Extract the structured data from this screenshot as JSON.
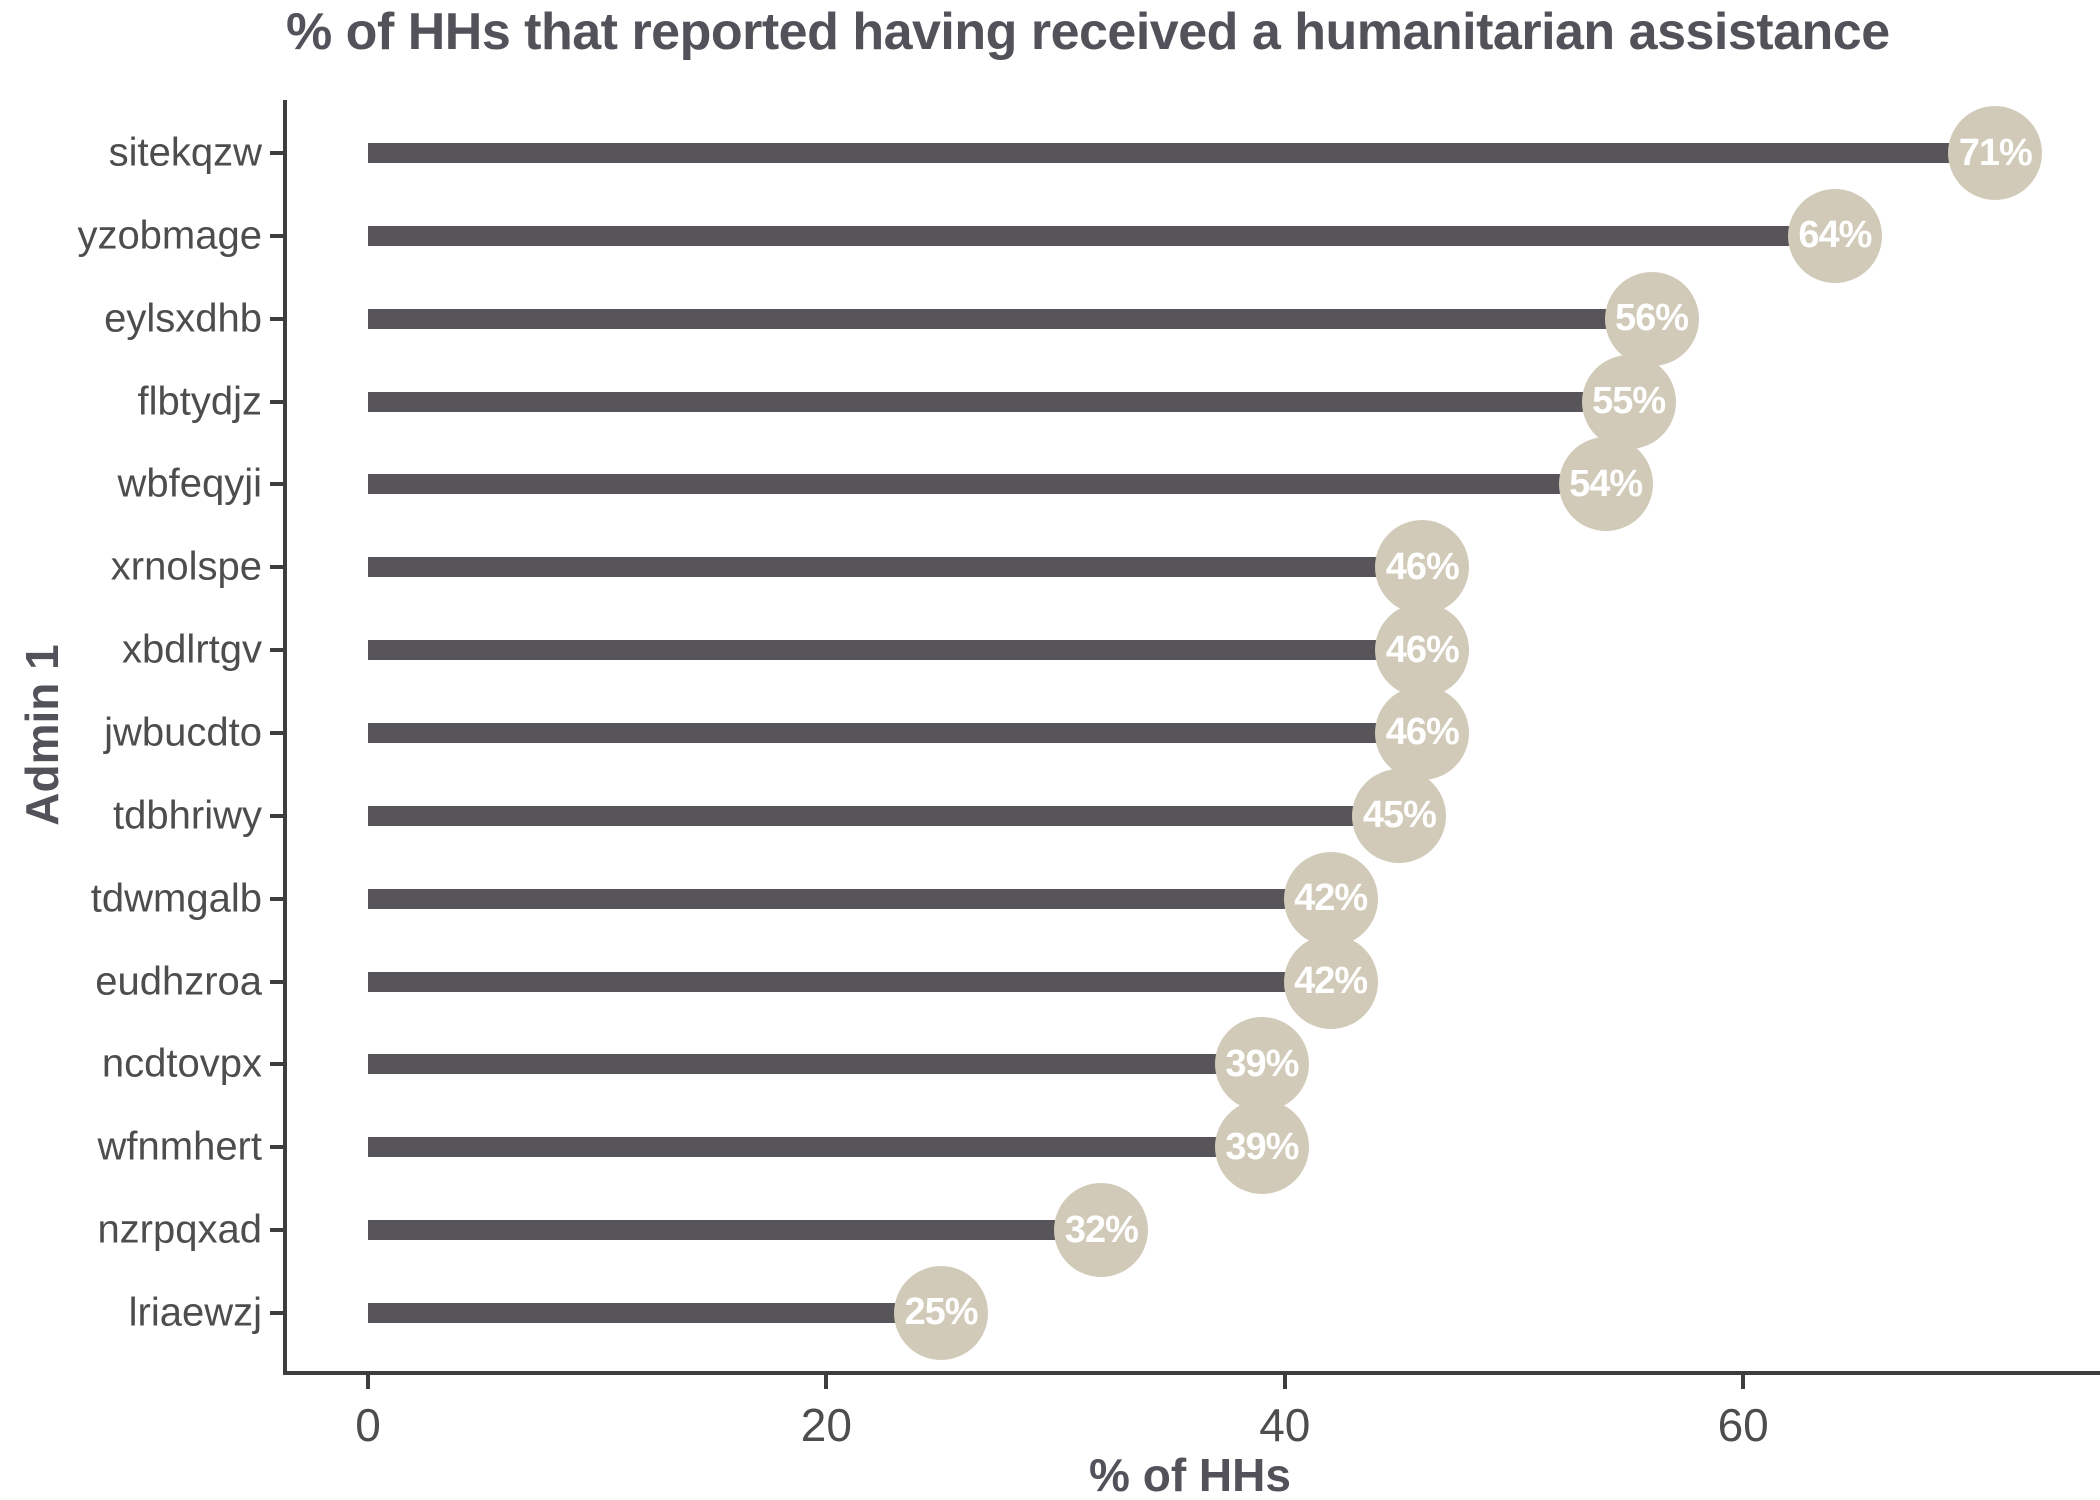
{
  "title": "% of HHs that reported having received a humanitarian assistance",
  "chart_data": {
    "type": "bar",
    "variant": "horizontal-lollipop",
    "title": "% of HHs that reported having received a humanitarian assistance",
    "xlabel": "% of HHs",
    "ylabel": "Admin 1",
    "categories": [
      "sitekqzw",
      "yzobmage",
      "eylsxdhb",
      "flbtydjz",
      "wbfeqyji",
      "xrnolspe",
      "xbdlrtgv",
      "jwbucdto",
      "tdbhriwy",
      "tdwmgalb",
      "eudhzroa",
      "ncdtovpx",
      "wfnmhert",
      "nzrpqxad",
      "lriaewzj"
    ],
    "values": [
      71,
      64,
      56,
      55,
      54,
      46,
      46,
      46,
      45,
      42,
      42,
      39,
      39,
      32,
      25
    ],
    "value_labels": [
      "71%",
      "64%",
      "56%",
      "55%",
      "54%",
      "46%",
      "46%",
      "46%",
      "45%",
      "42%",
      "42%",
      "39%",
      "39%",
      "32%",
      "25%"
    ],
    "x_ticks": [
      0,
      20,
      40,
      60
    ],
    "x_tick_labels": [
      "0",
      "20",
      "40",
      "60"
    ],
    "xlim": [
      0,
      75.6
    ],
    "grid": false,
    "legend": false,
    "colors": {
      "bar": "#57555a",
      "marker_fill": "#d1cab8",
      "marker_text": "#ffffff",
      "axis_line": "#3e3e3e",
      "tick_label": "#4d4d4d",
      "title_text": "#53525a"
    }
  }
}
